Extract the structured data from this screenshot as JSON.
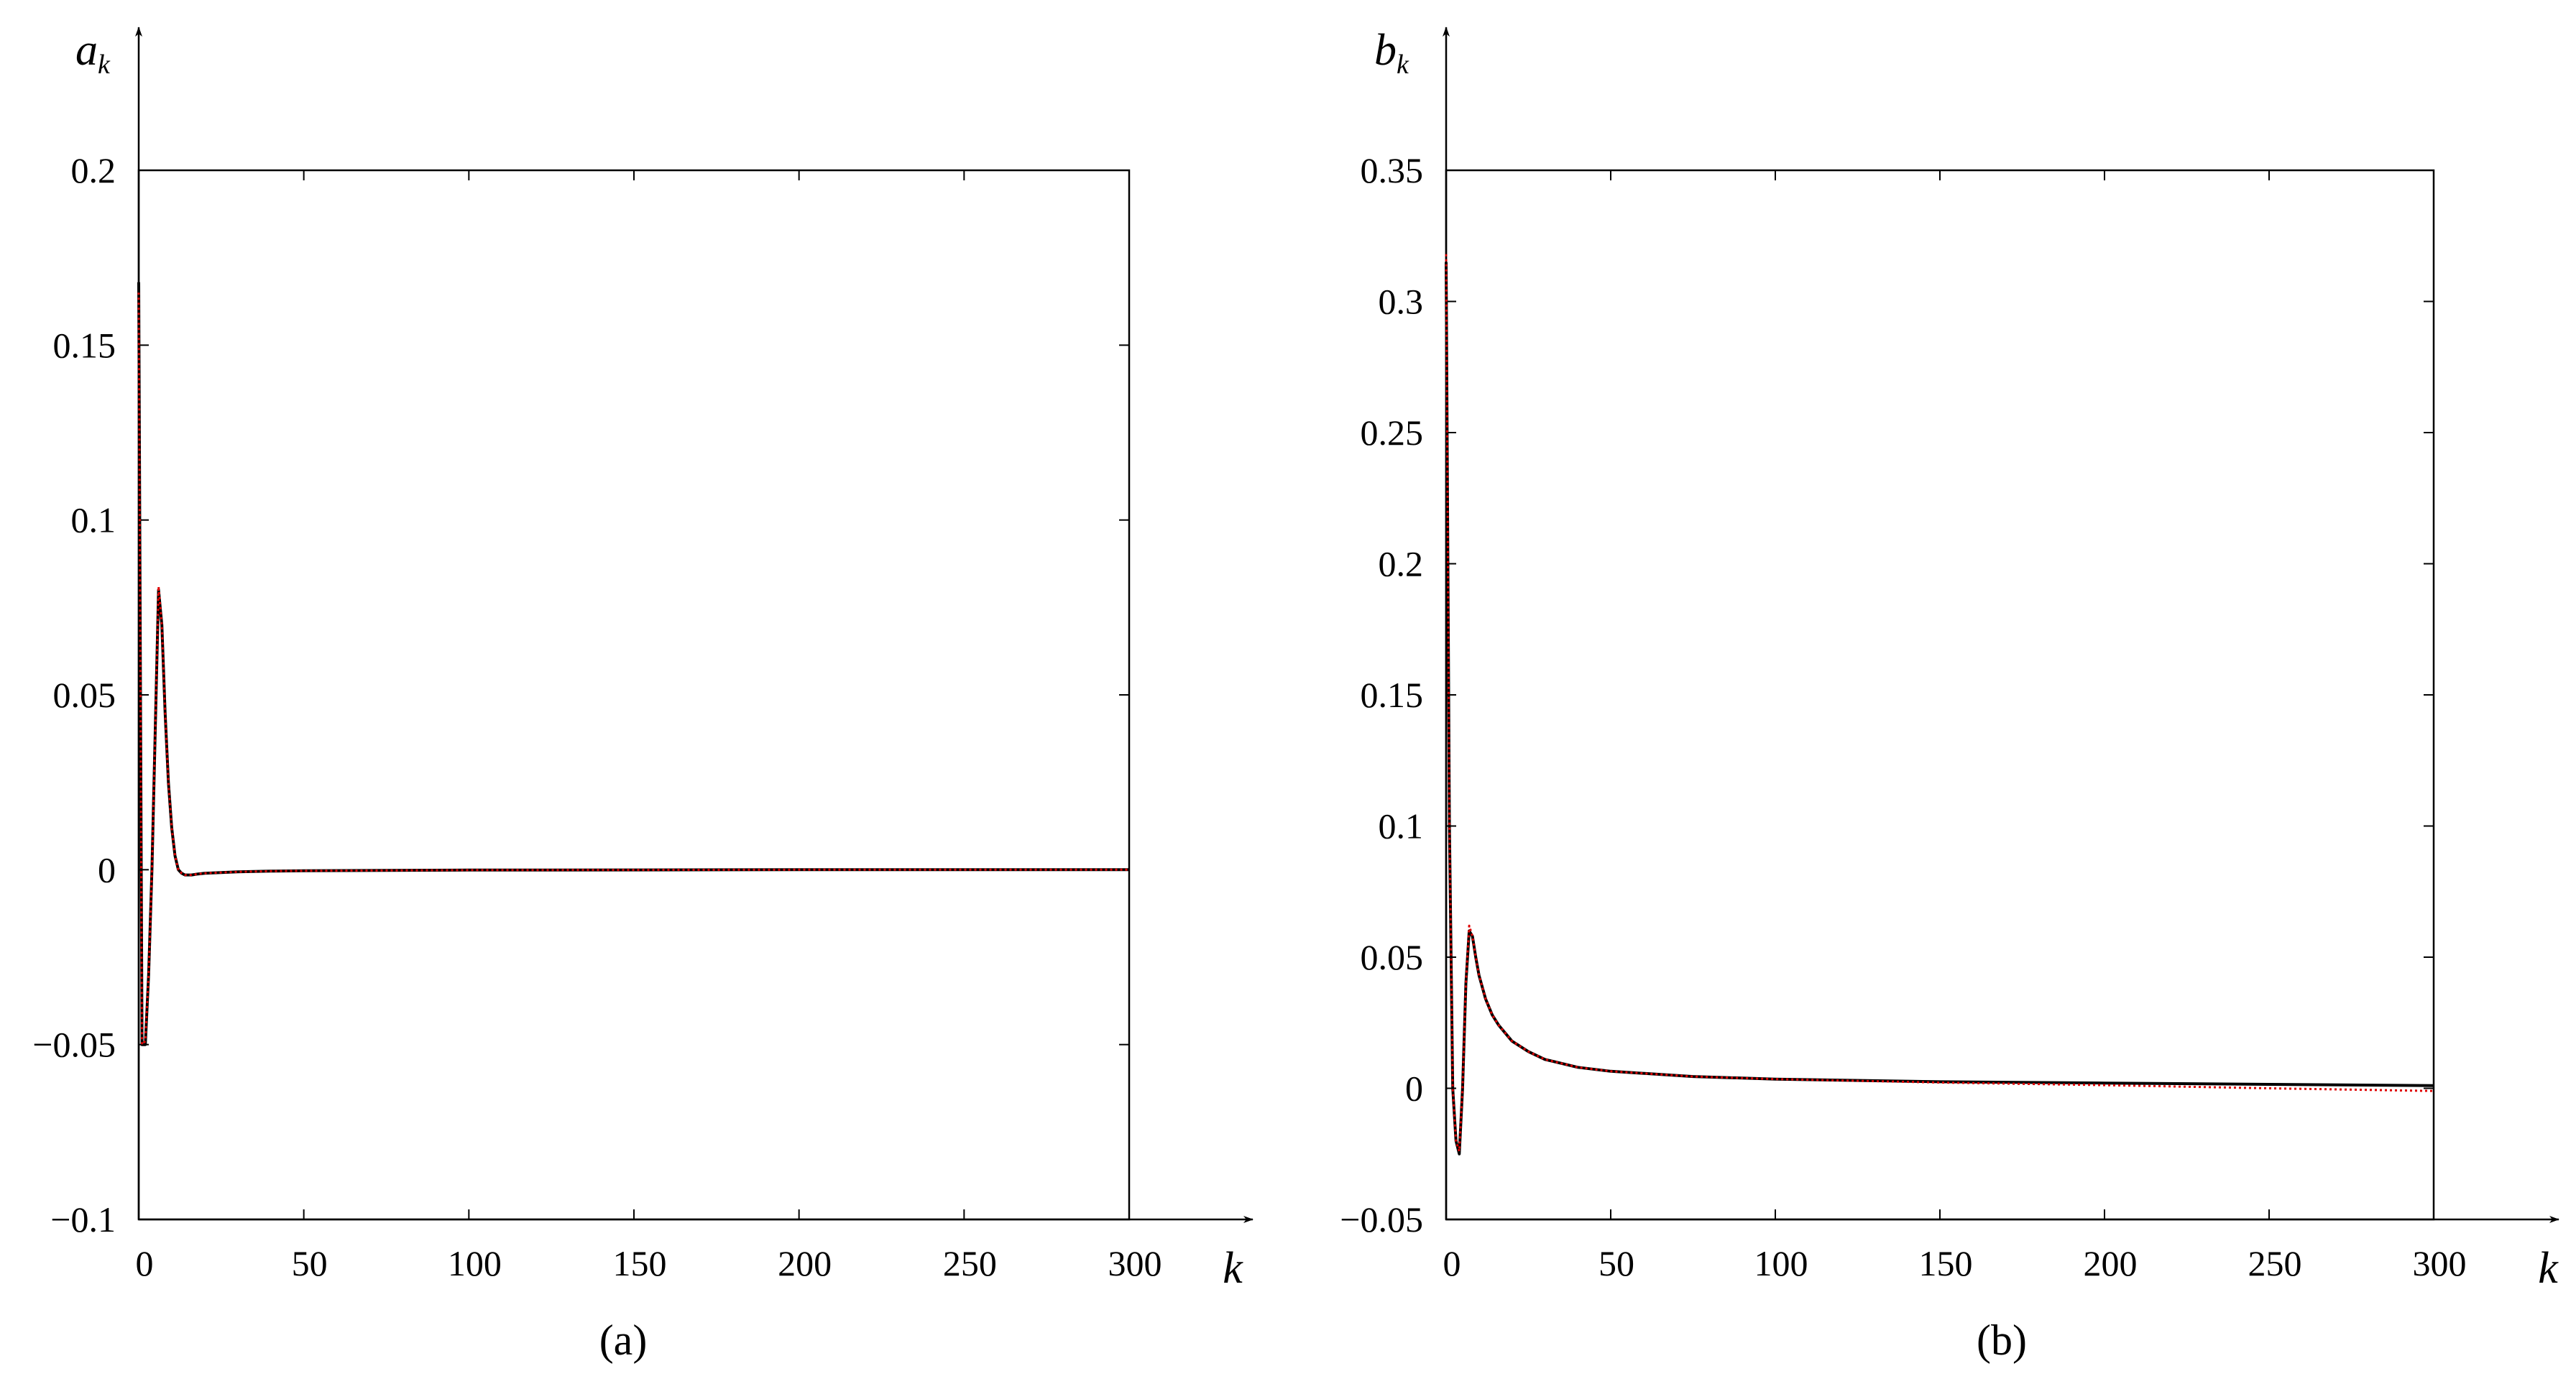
{
  "chart_data": [
    {
      "type": "line",
      "caption": "(a)",
      "ylabel_main": "a",
      "ylabel_sub": "k",
      "xlabel": "k",
      "xlim": [
        0,
        300
      ],
      "ylim": [
        -0.1,
        0.2
      ],
      "xticks": [
        0,
        50,
        100,
        150,
        200,
        250,
        300
      ],
      "yticks": [
        -0.1,
        -0.05,
        0,
        0.05,
        0.1,
        0.15,
        0.2
      ],
      "xtick_labels": [
        "0",
        "50",
        "100",
        "150",
        "200",
        "250",
        "300"
      ],
      "ytick_labels": [
        "−0.1",
        "−0.05",
        "0",
        "0.05",
        "0.1",
        "0.15",
        "0.2"
      ],
      "series": [
        {
          "color": "#000000",
          "style": "solid",
          "x": [
            0,
            1,
            2,
            3,
            4,
            5,
            6,
            7,
            8,
            9,
            10,
            11,
            12,
            13,
            14,
            16,
            18,
            20,
            25,
            30,
            40,
            50,
            75,
            100,
            150,
            200,
            250,
            300
          ],
          "y": [
            0.168,
            -0.05,
            -0.05,
            -0.03,
            0.0,
            0.04,
            0.08,
            0.07,
            0.045,
            0.025,
            0.012,
            0.004,
            0.0,
            -0.001,
            -0.0015,
            -0.0015,
            -0.0012,
            -0.001,
            -0.0008,
            -0.0006,
            -0.0004,
            -0.0003,
            -0.0002,
            -0.0001,
            -5e-05,
            0.0,
            0.0,
            0.0
          ]
        },
        {
          "color": "#e00000",
          "style": "dotted",
          "x": [
            0,
            1,
            2,
            3,
            4,
            5,
            6,
            7,
            8,
            9,
            10,
            11,
            12,
            13,
            14,
            16,
            18,
            20,
            25,
            30,
            40,
            50,
            75,
            100,
            150,
            200,
            250,
            300
          ],
          "y": [
            0.165,
            -0.05,
            -0.049,
            -0.03,
            0.0,
            0.04,
            0.081,
            0.07,
            0.045,
            0.025,
            0.012,
            0.004,
            0.0,
            -0.001,
            -0.0015,
            -0.0015,
            -0.0012,
            -0.001,
            -0.0008,
            -0.0006,
            -0.0004,
            -0.0003,
            -0.0002,
            -0.0001,
            -5e-05,
            0.0,
            0.0,
            0.0
          ]
        }
      ]
    },
    {
      "type": "line",
      "caption": "(b)",
      "ylabel_main": "b",
      "ylabel_sub": "k",
      "xlabel": "k",
      "xlim": [
        0,
        300
      ],
      "ylim": [
        -0.05,
        0.35
      ],
      "xticks": [
        0,
        50,
        100,
        150,
        200,
        250,
        300
      ],
      "yticks": [
        -0.05,
        0,
        0.05,
        0.1,
        0.15,
        0.2,
        0.25,
        0.3,
        0.35
      ],
      "xtick_labels": [
        "0",
        "50",
        "100",
        "150",
        "200",
        "250",
        "300"
      ],
      "ytick_labels": [
        "−0.05",
        "0",
        "0.05",
        "0.1",
        "0.15",
        "0.2",
        "0.25",
        "0.3",
        "0.35"
      ],
      "series": [
        {
          "color": "#000000",
          "style": "solid",
          "x": [
            0,
            1,
            2,
            3,
            4,
            5,
            6,
            7,
            8,
            9,
            10,
            12,
            14,
            16,
            18,
            20,
            25,
            30,
            40,
            50,
            75,
            100,
            150,
            200,
            250,
            300
          ],
          "y": [
            0.315,
            0.1,
            0.0,
            -0.02,
            -0.025,
            0.0,
            0.04,
            0.06,
            0.058,
            0.05,
            0.043,
            0.034,
            0.028,
            0.024,
            0.021,
            0.018,
            0.014,
            0.011,
            0.008,
            0.0065,
            0.0045,
            0.0035,
            0.0025,
            0.002,
            0.0015,
            0.001
          ]
        },
        {
          "color": "#e00000",
          "style": "dotted",
          "x": [
            0,
            1,
            2,
            3,
            4,
            5,
            6,
            7,
            8,
            9,
            10,
            12,
            14,
            16,
            18,
            20,
            25,
            30,
            40,
            50,
            75,
            100,
            150,
            200,
            250,
            300
          ],
          "y": [
            0.318,
            0.1,
            0.0,
            -0.02,
            -0.024,
            0.0,
            0.04,
            0.062,
            0.058,
            0.05,
            0.043,
            0.034,
            0.028,
            0.024,
            0.021,
            0.018,
            0.014,
            0.011,
            0.008,
            0.0065,
            0.0045,
            0.0035,
            0.0022,
            0.0012,
            0.0,
            -0.001
          ]
        }
      ]
    }
  ]
}
